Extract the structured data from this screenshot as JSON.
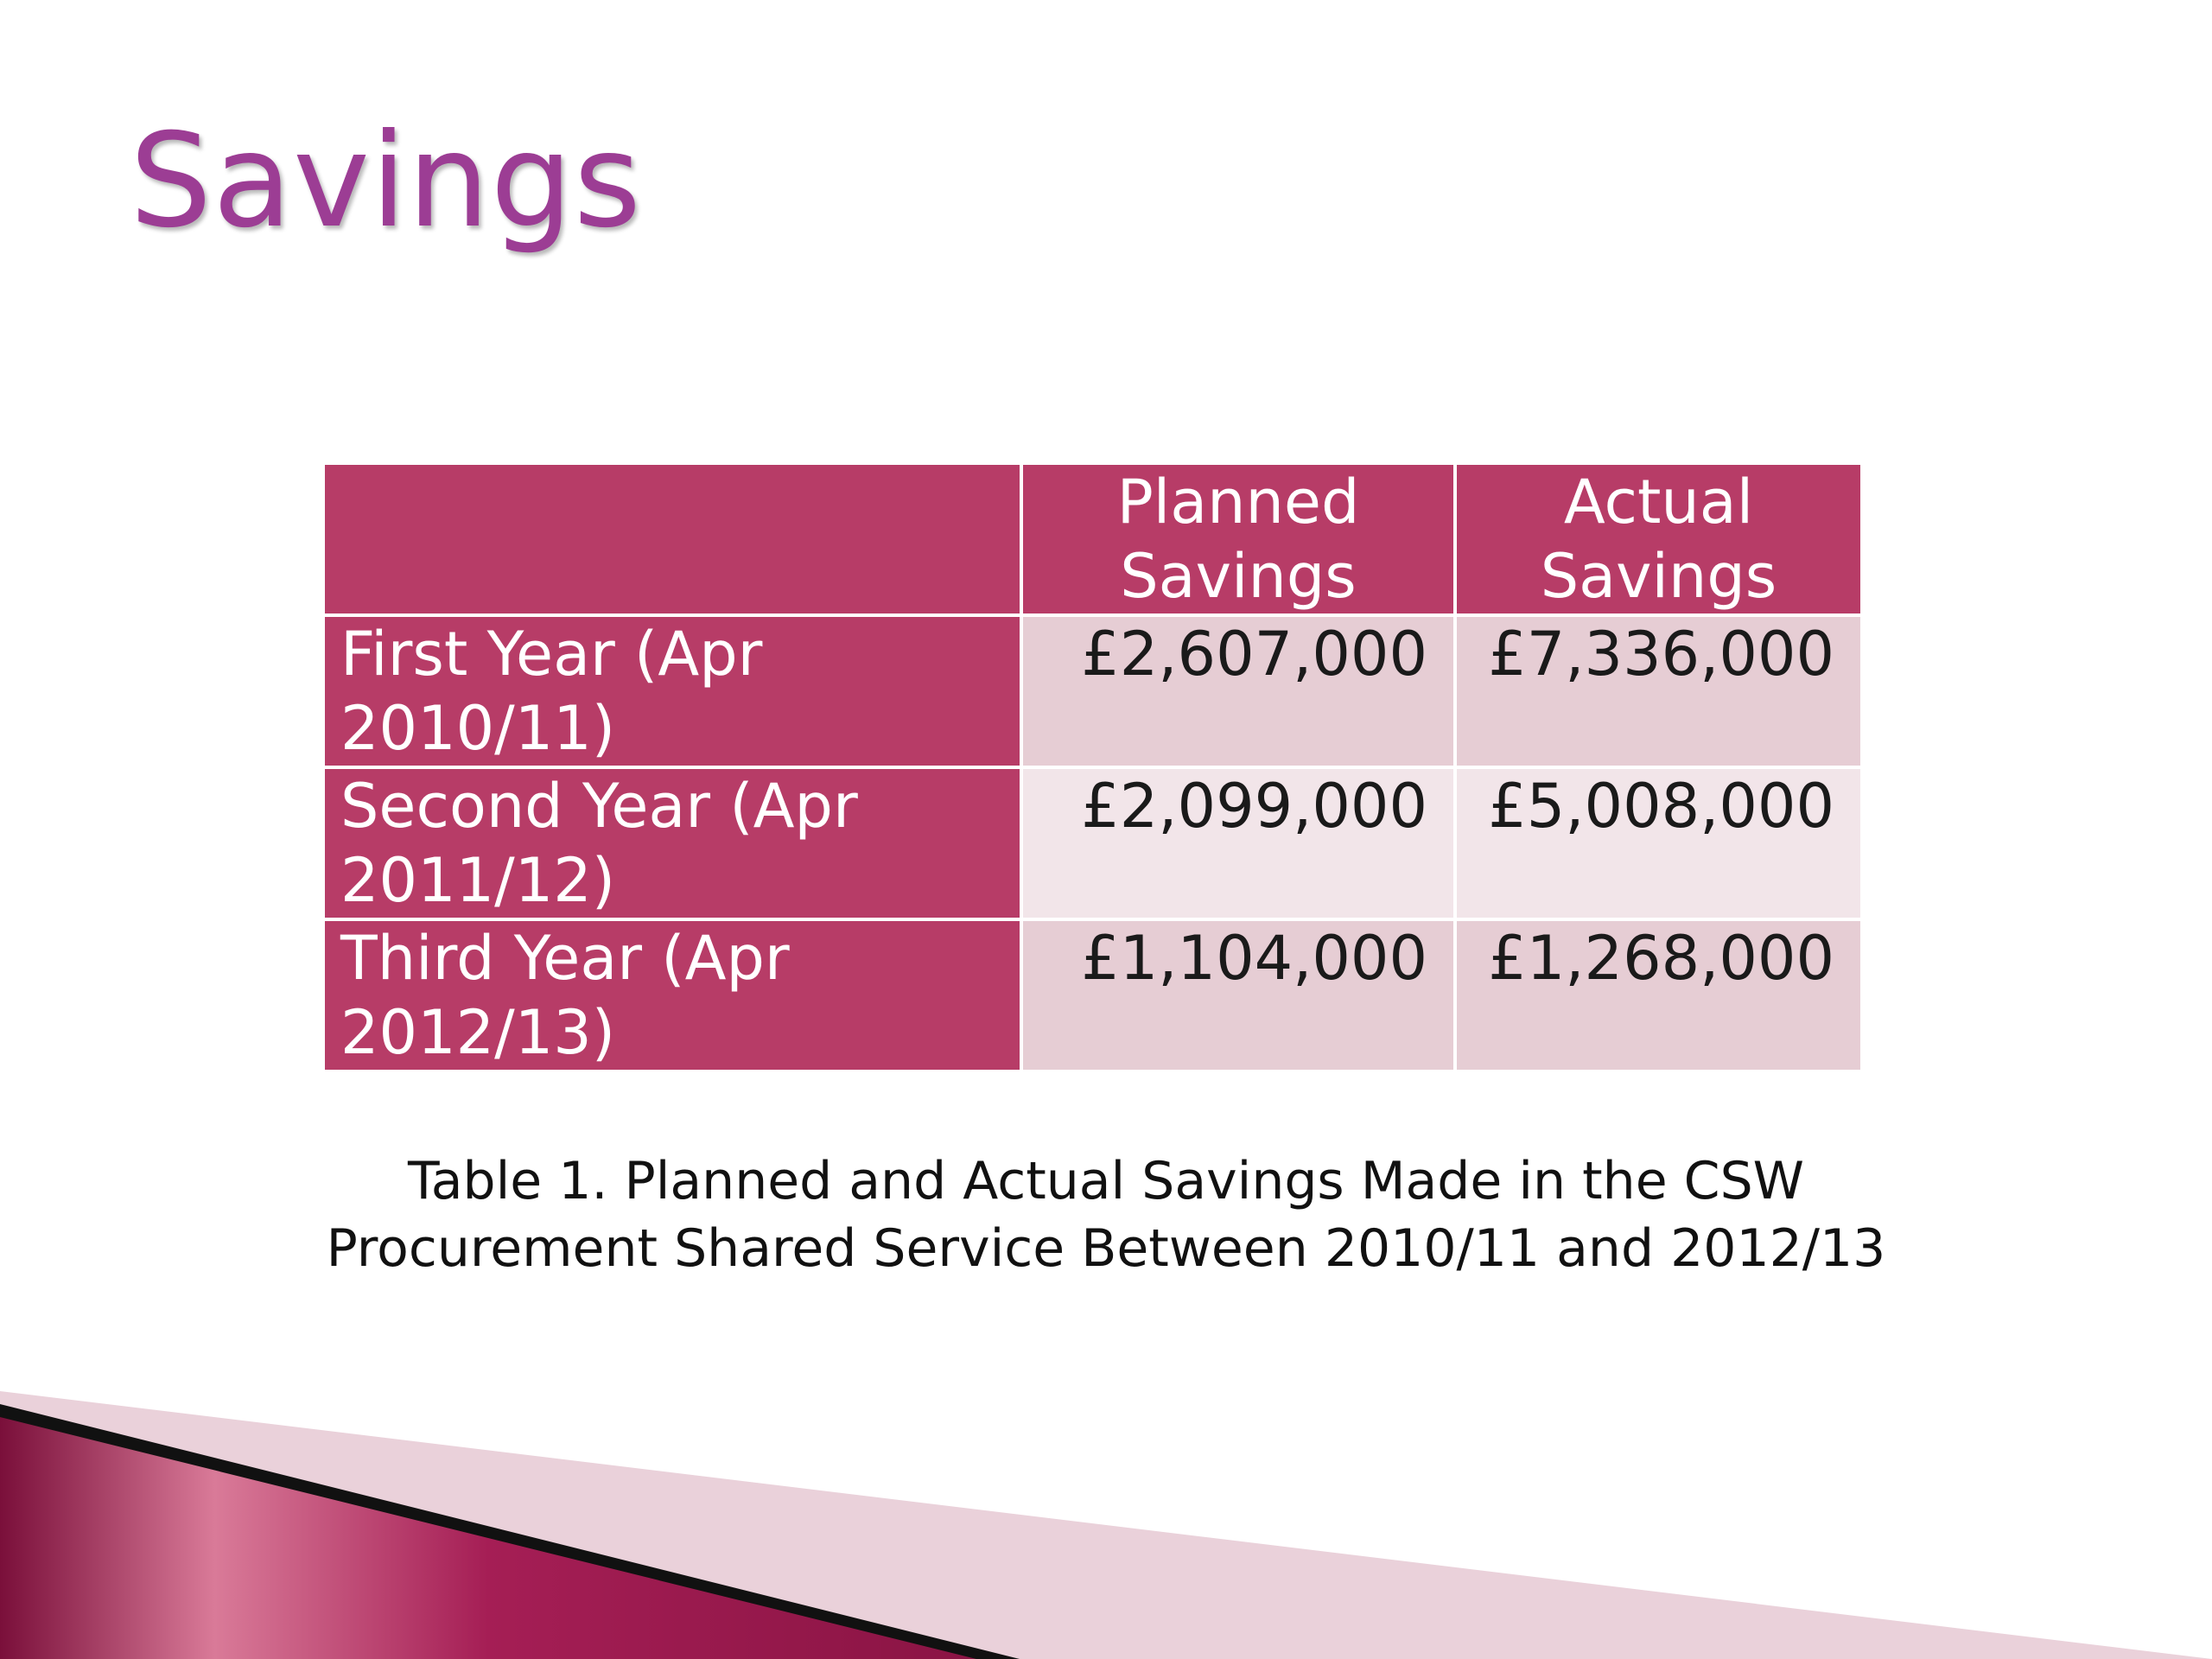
{
  "slide": {
    "title": "Savings"
  },
  "table": {
    "headers": [
      "",
      "Planned Savings",
      "Actual Savings"
    ],
    "rows": [
      {
        "period": "First Year (Apr 2010/11)",
        "planned": "£2,607,000",
        "actual": "£7,336,000"
      },
      {
        "period": "Second Year (Apr 2011/12)",
        "planned": "£2,099,000",
        "actual": "£5,008,000"
      },
      {
        "period": "Third Year (Apr 2012/13)",
        "planned": "£1,104,000",
        "actual": "£1,268,000"
      }
    ]
  },
  "caption": {
    "line1": "Table 1.  Planned and Actual Savings Made in the CSW",
    "line2": "Procurement Shared Service Between 2010/11 and 2012/13"
  },
  "colors": {
    "title": "#9c3d94",
    "header_fill": "#b73c67",
    "cell_dark": "#e6cdd4",
    "cell_light": "#f2e5e9",
    "accent_dark": "#7a0f3a",
    "accent_light": "#d97a98"
  }
}
